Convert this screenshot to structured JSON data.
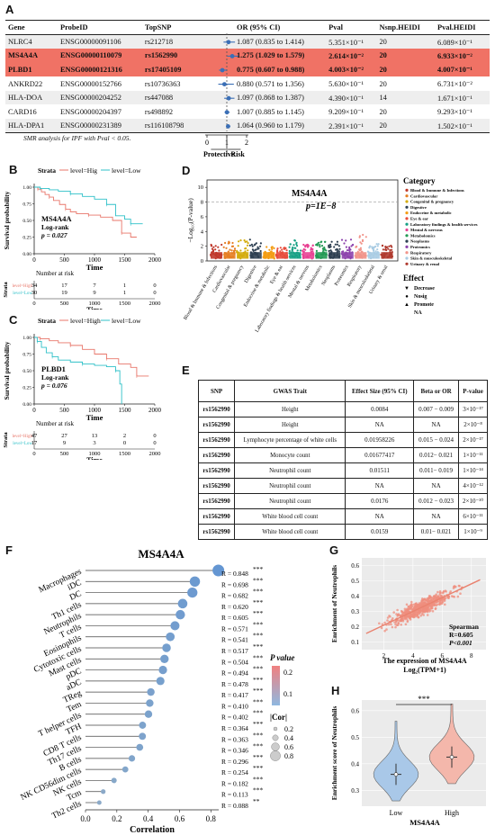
{
  "panels": {
    "A": "A",
    "B": "B",
    "C": "C",
    "D": "D",
    "E": "E",
    "F": "F",
    "G": "G",
    "H": "H"
  },
  "panelA": {
    "columns": [
      "Gene",
      "ProbeID",
      "TopSNP",
      "OR (95% CI)",
      "Pval",
      "Nsnp.HEIDI",
      "Pval.HEIDI"
    ],
    "rows": [
      {
        "gene": "NLRC4",
        "probe": "ENSG00000091106",
        "snp": "rs212718",
        "or": "1.087 (0.835 to 1.414)",
        "pval": "5.351×10⁻¹",
        "nsnp": "20",
        "pheidi": "6.089×10⁻¹",
        "highlight": false
      },
      {
        "gene": "MS4A4A",
        "probe": "ENSG00000110079",
        "snp": "rs1562990",
        "or": "1.275 (1.029 to 1.579)",
        "pval": "2.614×10⁻²",
        "nsnp": "20",
        "pheidi": "6.933×10⁻²",
        "highlight": true
      },
      {
        "gene": "PLBD1",
        "probe": "ENSG00000121316",
        "snp": "rs17405109",
        "or": "0.775 (0.607 to 0.988)",
        "pval": "4.003×10⁻²",
        "nsnp": "20",
        "pheidi": "4.007×10⁻¹",
        "highlight": true
      },
      {
        "gene": "ANKRD22",
        "probe": "ENSG00000152766",
        "snp": "rs10736363",
        "or": "0.880 (0.571 to 1.356)",
        "pval": "5.630×10⁻¹",
        "nsnp": "20",
        "pheidi": "6.731×10⁻²",
        "highlight": false
      },
      {
        "gene": "HLA-DOA",
        "probe": "ENSG00000204252",
        "snp": "rs447088",
        "or": "1.097 (0.868 to 1.387)",
        "pval": "4.390×10⁻¹",
        "nsnp": "14",
        "pheidi": "1.671×10⁻¹",
        "highlight": false
      },
      {
        "gene": "CARD16",
        "probe": "ENSG00000204397",
        "snp": "rs498892",
        "or": "1.007 (0.885 to 1.145)",
        "pval": "9.209×10⁻¹",
        "nsnp": "20",
        "pheidi": "9.293×10⁻¹",
        "highlight": false
      },
      {
        "gene": "HLA-DPA1",
        "probe": "ENSG00000231389",
        "snp": "rs116108798",
        "or": "1.064 (0.960 to 1.179)",
        "pval": "2.391×10⁻¹",
        "nsnp": "20",
        "pheidi": "1.502×10⁻¹",
        "highlight": false
      }
    ],
    "forest": [
      {
        "or": 1.087,
        "lo": 0.835,
        "hi": 1.414
      },
      {
        "or": 1.275,
        "lo": 1.029,
        "hi": 1.579
      },
      {
        "or": 0.775,
        "lo": 0.607,
        "hi": 0.988
      },
      {
        "or": 0.88,
        "lo": 0.571,
        "hi": 1.356
      },
      {
        "or": 1.097,
        "lo": 0.868,
        "hi": 1.387
      },
      {
        "or": 1.007,
        "lo": 0.885,
        "hi": 1.145
      },
      {
        "or": 1.064,
        "lo": 0.96,
        "hi": 1.179
      }
    ],
    "axis_ticks": [
      "0",
      "1",
      "2"
    ],
    "protective": "Protective",
    "risk": "Risk",
    "note": "SMR analysis for IPF with Pval < 0.05."
  },
  "km": [
    {
      "strata_label": "Strata",
      "legend_high": "level=Hig",
      "legend_low": "level=Low",
      "gene": "MS4A4A",
      "test": "Log-rank",
      "pval": "p = 0.027",
      "ylabel": "Survival probability",
      "xlabel": "Time",
      "x_ticks": [
        "0",
        "500",
        "1000",
        "1500",
        "2000"
      ],
      "y_ticks": [
        "0.00",
        "0.25",
        "0.50",
        "0.75",
        "1.00"
      ],
      "risk_title": "Number at risk",
      "risk_strata": "Strata",
      "risk_rows": [
        {
          "label": "level=High",
          "values": [
            "34",
            "17",
            "7",
            "1",
            "0"
          ]
        },
        {
          "label": "level=Low",
          "values": [
            "30",
            "19",
            "9",
            "1",
            "0"
          ]
        }
      ],
      "curve_high": [
        [
          0,
          1
        ],
        [
          60,
          0.97
        ],
        [
          120,
          0.93
        ],
        [
          180,
          0.89
        ],
        [
          250,
          0.85
        ],
        [
          320,
          0.8
        ],
        [
          420,
          0.74
        ],
        [
          520,
          0.67
        ],
        [
          600,
          0.63
        ],
        [
          700,
          0.6
        ],
        [
          900,
          0.58
        ],
        [
          1100,
          0.55
        ],
        [
          1300,
          0.5
        ],
        [
          1450,
          0.31
        ],
        [
          1600,
          0.25
        ],
        [
          1700,
          0.25
        ]
      ],
      "curve_low": [
        [
          0,
          1
        ],
        [
          100,
          0.98
        ],
        [
          250,
          0.96
        ],
        [
          400,
          0.94
        ],
        [
          600,
          0.9
        ],
        [
          800,
          0.86
        ],
        [
          1000,
          0.82
        ],
        [
          1200,
          0.74
        ],
        [
          1350,
          0.57
        ],
        [
          1500,
          0.52
        ],
        [
          1600,
          0.45
        ],
        [
          1800,
          0.45
        ]
      ]
    },
    {
      "strata_label": "Strata",
      "legend_high": "level=High",
      "legend_low": "level=Low",
      "gene": "PLBD1",
      "test": "Log-rank",
      "pval": "p = 0.076",
      "ylabel": "Survival probability",
      "xlabel": "Time",
      "x_ticks": [
        "0",
        "500",
        "1000",
        "1500",
        "2000"
      ],
      "y_ticks": [
        "0.00",
        "0.25",
        "0.50",
        "0.75",
        "1.00"
      ],
      "risk_title": "Number at risk",
      "risk_strata": "Strata",
      "risk_rows": [
        {
          "label": "level=High",
          "values": [
            "47",
            "27",
            "13",
            "2",
            "0"
          ]
        },
        {
          "label": "level=Low",
          "values": [
            "17",
            "9",
            "3",
            "0",
            "0"
          ]
        }
      ],
      "curve_high": [
        [
          0,
          1
        ],
        [
          100,
          0.98
        ],
        [
          250,
          0.95
        ],
        [
          400,
          0.92
        ],
        [
          600,
          0.88
        ],
        [
          800,
          0.82
        ],
        [
          1000,
          0.75
        ],
        [
          1200,
          0.68
        ],
        [
          1400,
          0.6
        ],
        [
          1600,
          0.55
        ],
        [
          1700,
          0.42
        ],
        [
          1900,
          0.42
        ]
      ],
      "curve_low": [
        [
          0,
          1
        ],
        [
          50,
          0.94
        ],
        [
          120,
          0.85
        ],
        [
          200,
          0.77
        ],
        [
          300,
          0.71
        ],
        [
          400,
          0.66
        ],
        [
          600,
          0.63
        ],
        [
          800,
          0.6
        ],
        [
          1000,
          0.58
        ],
        [
          1200,
          0.56
        ],
        [
          1350,
          0.5
        ],
        [
          1420,
          0.3
        ],
        [
          1450,
          0.0
        ]
      ]
    }
  ],
  "panelD": {
    "gene": "MS4A4A",
    "pval_label": "p=1E−8",
    "ylabel": "−Log₁₀(P-value)",
    "y_ticks": [
      "0",
      "2",
      "4",
      "6",
      "8",
      "10"
    ],
    "threshold": 8,
    "categories": [
      "Blood & Immune & Infections",
      "Cardiovascular",
      "Congenital & pregnancy",
      "Digestive",
      "Endocrine & metabolic",
      "Eye & ear",
      "Laboratory findings & health services",
      "Mental & nervous",
      "Metabolomics",
      "Neoplasms",
      "Proteomics",
      "Respiratory",
      "Skin & musculoskeletal",
      "Urinary & renal"
    ],
    "x_labels": [
      "Blood & Immune & Infections",
      "Cardiovascular",
      "Congenital & pregnancy",
      "Digestive",
      "Endocrine & metabolic",
      "Eye & ear",
      "Laboratory findings & health services",
      "Mental & nervous",
      "Metabolomics",
      "Neoplasms",
      "Proteomics",
      "Respiratory",
      "Skin & musculoskeletal",
      "Urinary & renal"
    ],
    "colors": [
      "#c0392b",
      "#e67e22",
      "#d4ac0d",
      "#2e4053",
      "#f39c12",
      "#e74c3c",
      "#16a085",
      "#e84393",
      "#229954",
      "#2c3e50",
      "#8e44ad",
      "#f1948a",
      "#a9cce3",
      "#b03a2e"
    ],
    "cluster_heights": [
      2.2,
      2.6,
      2.8,
      2.9,
      1.9,
      1.8,
      2.8,
      2.2,
      2.7,
      2.6,
      2.9,
      3.6,
      2.3,
      2.1
    ],
    "category_title": "Category",
    "effect_title": "Effect",
    "effects": [
      "Decrease",
      "Nosig",
      "Promote",
      "NA"
    ]
  },
  "panelE": {
    "columns": [
      "SNP",
      "GWAS Trait",
      "Effect Size (95% CI)",
      "Beta or OR",
      "P-value"
    ],
    "rows": [
      [
        "rs1562990",
        "Height",
        "0.0084",
        "0.007 − 0.009",
        "3×10⁻¹⁷"
      ],
      [
        "rs1562990",
        "Height",
        "NA",
        "NA",
        "2×10⁻⁸"
      ],
      [
        "rs1562990",
        "Lymphocyte percentage of white cells",
        "0.01958226",
        "0.015 − 0.024",
        "2×10⁻¹⁷"
      ],
      [
        "rs1562990",
        "Monocyte count",
        "0.01677417",
        "0.012− 0.021",
        "1×10⁻¹¹"
      ],
      [
        "rs1562990",
        "Neutrophil count",
        "0.01511",
        "0.011− 0.019",
        "1×10⁻¹⁴"
      ],
      [
        "rs1562990",
        "Neutrophil count",
        "NA",
        "NA",
        "4×10⁻¹²"
      ],
      [
        "rs1562990",
        "Neutrophil count",
        "0.0176",
        "0.012 − 0.023",
        "2×10⁻¹⁰"
      ],
      [
        "rs1562990",
        "White blood cell count",
        "NA",
        "NA",
        "6×10⁻¹¹"
      ],
      [
        "rs1562990",
        "White blood cell count",
        "0.0159",
        "0.01− 0.021",
        "1×10⁻⁹"
      ]
    ]
  },
  "chart_data": {
    "type": "scatter",
    "title": "MS4A4A",
    "xlabel": "Correlation",
    "x_ticks": [
      "0.0",
      "0.2",
      "0.4",
      "0.6",
      "0.8"
    ],
    "xlim": [
      0,
      0.85
    ],
    "cells": [
      "Macrophages",
      "iDC",
      "DC",
      "Th1 cells",
      "Neutrophils",
      "T cells",
      "Eosinophils",
      "Cytotoxic cells",
      "Mast cells",
      "pDC",
      "aDC",
      "TReg",
      "Tem",
      "T helper cells",
      "TFH",
      "CD8 T cells",
      "Th17 cells",
      "B cells",
      "NK CD56dim cells",
      "NK cells",
      "Tcm",
      "Th2 cells"
    ],
    "r_values": [
      0.848,
      0.698,
      0.682,
      0.62,
      0.605,
      0.571,
      0.541,
      0.517,
      0.504,
      0.494,
      0.478,
      0.417,
      0.41,
      0.402,
      0.364,
      0.363,
      0.346,
      0.296,
      0.254,
      0.182,
      0.113,
      0.088
    ],
    "r_labels": [
      "R = 0.848",
      "R = 0.698",
      "R = 0.682",
      "R = 0.620",
      "R = 0.605",
      "R = 0.571",
      "R = 0.541",
      "R = 0.517",
      "R = 0.504",
      "R = 0.494",
      "R = 0.478",
      "R = 0.417",
      "R = 0.410",
      "R = 0.402",
      "R = 0.364",
      "R = 0.363",
      "R = 0.346",
      "R = 0.296",
      "R = 0.254",
      "R = 0.182",
      "R = 0.113",
      "R = 0.088"
    ],
    "stars": [
      "***",
      "***",
      "***",
      "***",
      "***",
      "***",
      "***",
      "***",
      "***",
      "***",
      "***",
      "***",
      "***",
      "***",
      "***",
      "***",
      "***",
      "***",
      "***",
      "***",
      "***",
      "**"
    ],
    "pval_legend_title": "P value",
    "pval_ticks": [
      "0.2",
      "0.1"
    ],
    "cor_legend_title": "|Cor|",
    "cor_ticks": [
      "0.2",
      "0.4",
      "0.6",
      "0.8"
    ]
  },
  "panelG": {
    "ylabel": "Enrichment of Neutrophils",
    "xlabel_1": "The expression of MS4A4A",
    "xlabel_2": "Log₂(TPM+1)",
    "x_ticks": [
      "2",
      "4",
      "6",
      "8"
    ],
    "y_ticks": [
      "0.1",
      "0.2",
      "0.3",
      "0.4",
      "0.5",
      "0.6"
    ],
    "stat_title": "Spearman",
    "stat_r": "R=0.605",
    "stat_p": "P<0.001",
    "slope": 0.045,
    "intercept": 0.12
  },
  "panelH": {
    "ylabel": "Enrichment score of Neutrophils",
    "xlabel": "MS4A4A",
    "groups": [
      "Low",
      "High"
    ],
    "medians": [
      0.36,
      0.425
    ],
    "y_ticks": [
      "0.3",
      "0.4",
      "0.5",
      "0.6"
    ],
    "significance": "***",
    "colors": [
      "#a9c8e8",
      "#f4b7ab"
    ]
  }
}
